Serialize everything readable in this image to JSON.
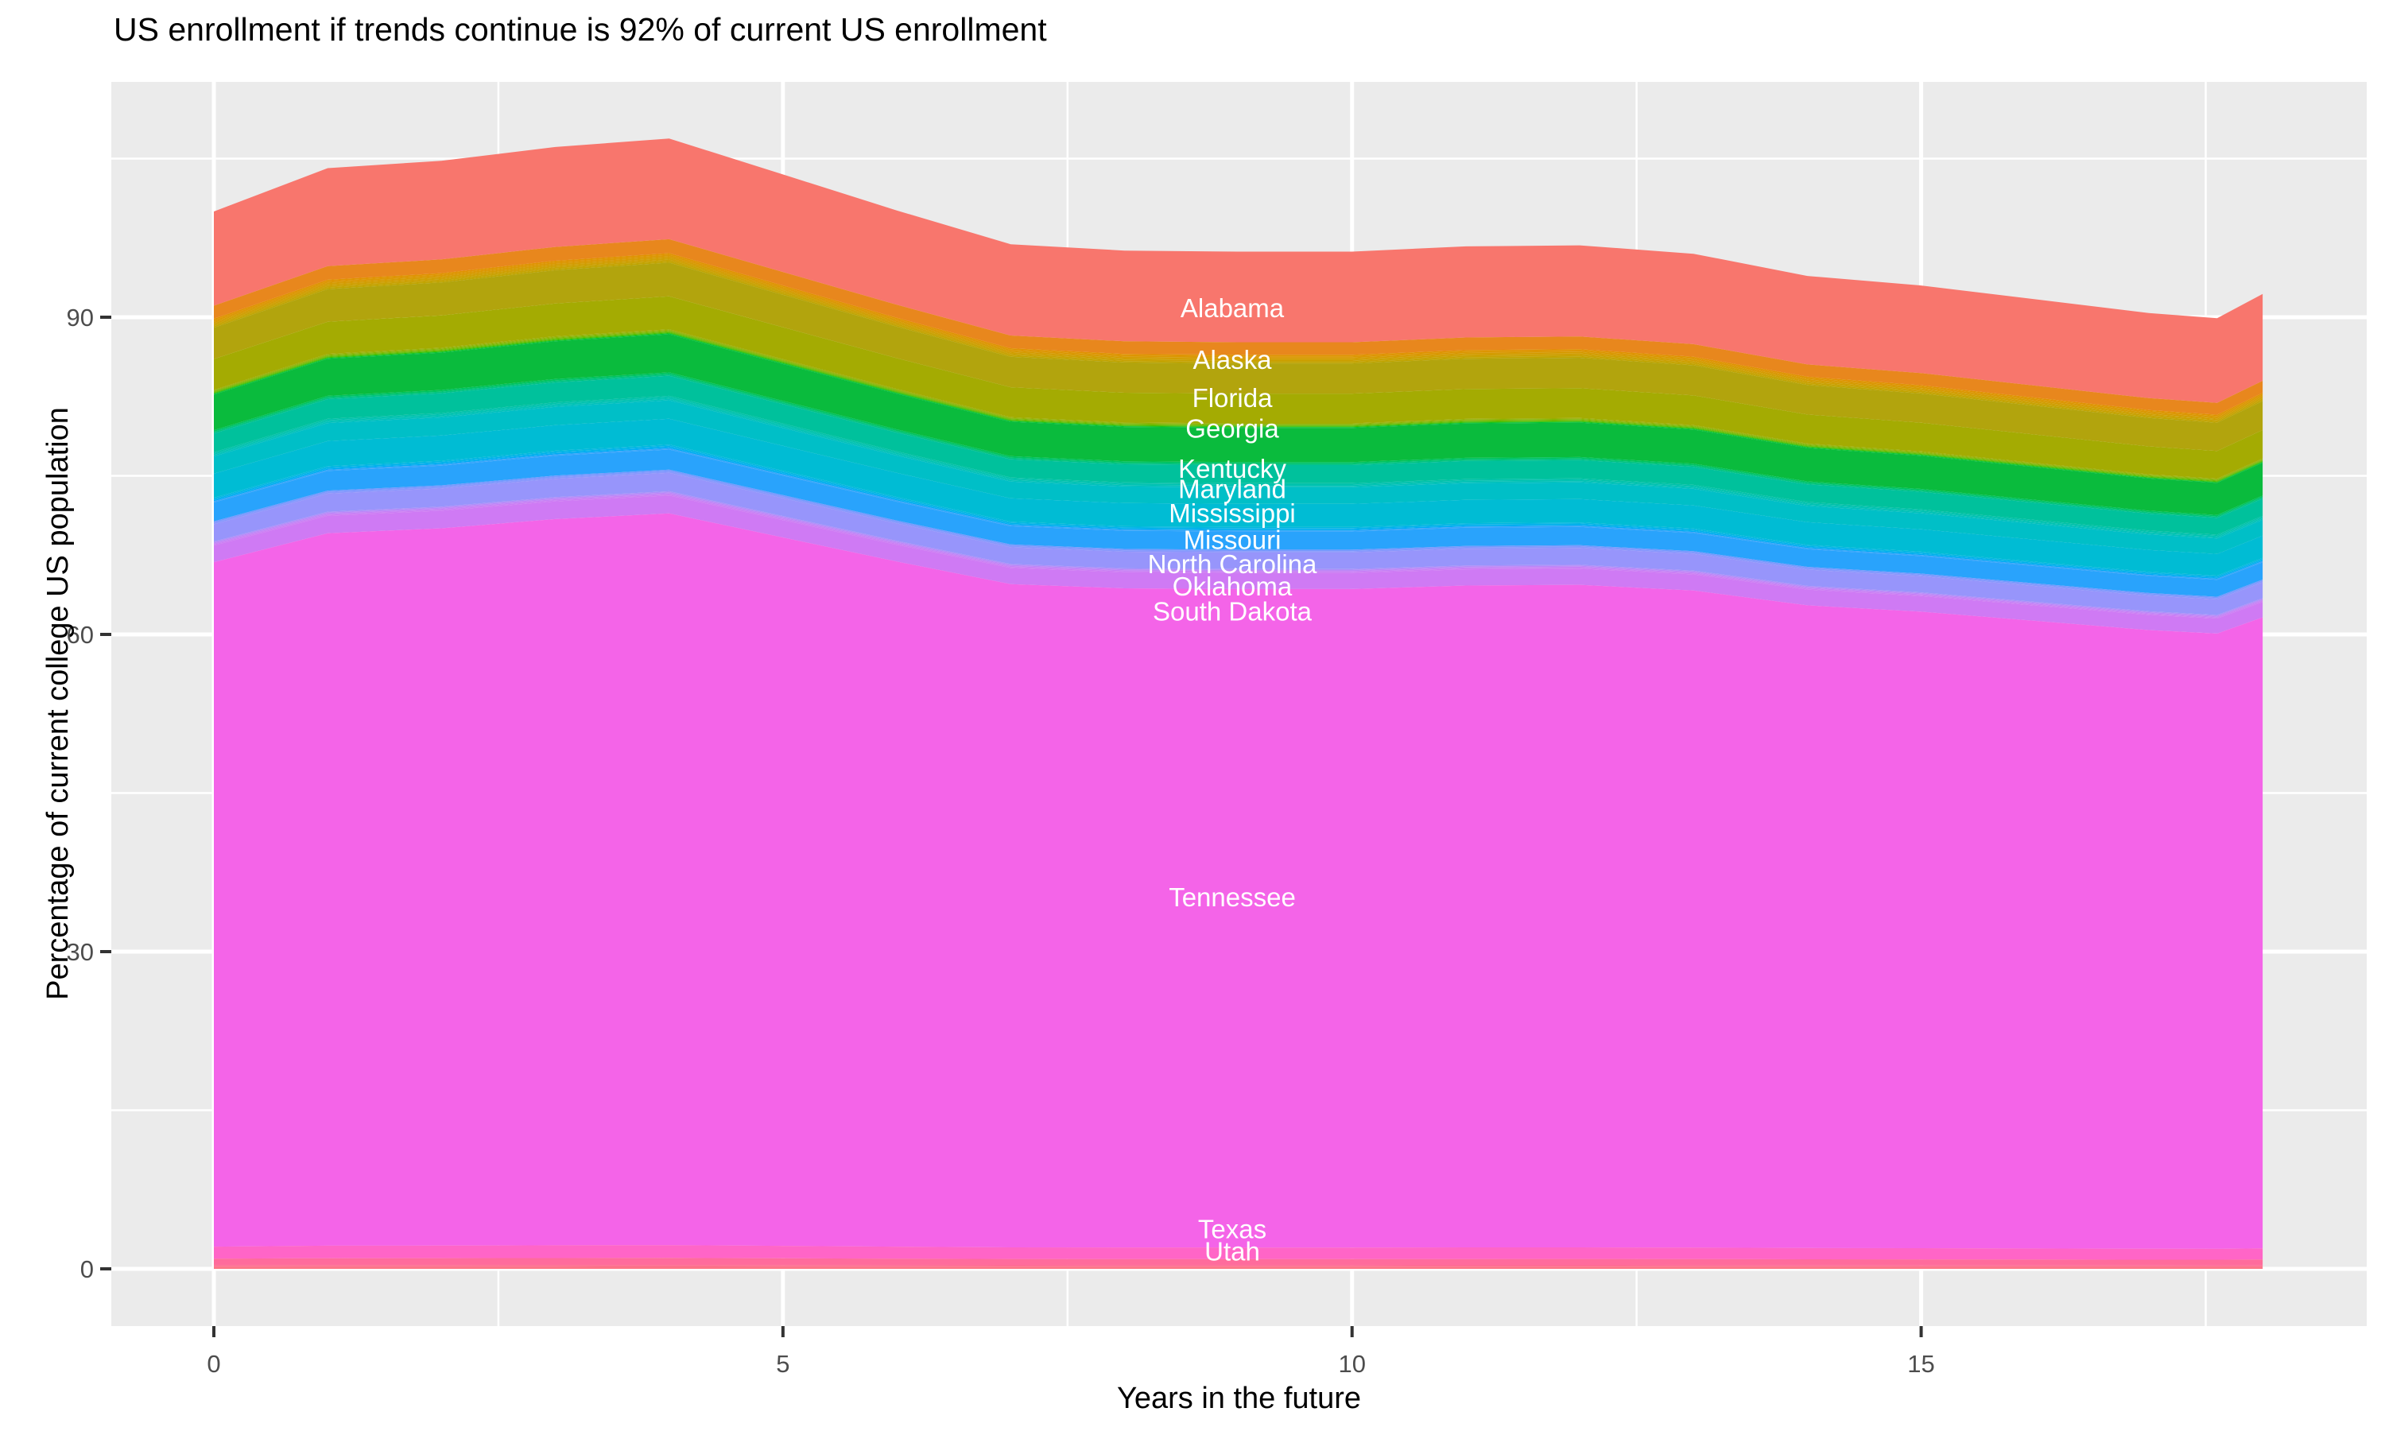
{
  "title": "US enrollment if trends continue is 92% of current US enrollment",
  "x_axis": {
    "title": "Years in the future",
    "tick_labels": [
      "0",
      "5",
      "10",
      "15"
    ],
    "tick_values": [
      0,
      5,
      10,
      15
    ],
    "minor_tick_values": [
      2.5,
      7.5,
      12.5,
      17.5
    ],
    "data_range": [
      0,
      18
    ]
  },
  "y_axis": {
    "title": "Percentage of current college US population",
    "tick_labels": [
      "0",
      "30",
      "60",
      "90"
    ],
    "tick_values": [
      0,
      30,
      60,
      90
    ],
    "minor_tick_values": [
      15,
      45,
      75,
      105
    ]
  },
  "style": {
    "panel_bg": "#EBEBEB",
    "grid_color": "#FFFFFF",
    "tick_mark_color": "#333333",
    "tick_text_color": "#4D4D4D",
    "state_label_color": "#FFFFFF"
  },
  "chart_data": {
    "type": "area",
    "stacked": true,
    "title": "US enrollment if trends continue is 92% of current US enrollment",
    "xlabel": "Years in the future",
    "ylabel": "Percentage of current college US population",
    "legend": "none (bands labeled in-plot with white text)",
    "grid": "ggplot2 style: white major+minor gridlines on grey panel",
    "x": [
      0,
      1,
      2,
      3,
      4,
      5,
      6,
      7,
      8,
      9,
      10,
      11,
      12,
      13,
      14,
      15,
      16,
      17,
      17.6,
      18
    ],
    "total_percent": [
      100.0,
      104.1,
      104.8,
      106.1,
      106.9,
      103.5,
      100.1,
      96.9,
      96.3,
      96.2,
      96.2,
      96.7,
      96.8,
      96.0,
      93.9,
      93.0,
      91.7,
      90.4,
      89.9,
      92.2
    ],
    "series_note": "Stacked top-to-bottom in this order; each series' value at x = share_of_total x total_percent[x]. Thin unlabeled stripe groups are the remaining alphabetical states squeezed between labeled ones.",
    "series": [
      {
        "name": "Alabama",
        "share": 0.09,
        "color": "#F8766D",
        "labeled": true,
        "label_at_percent": 90.9,
        "approx_percent_mid": 8.6
      },
      {
        "name": "Alaska",
        "share": 0.0125,
        "color": "#E8871D",
        "labeled": true,
        "label_at_percent": 86.0,
        "approx_percent_mid": 1.2
      },
      {
        "name": "unlabeled thin states (Arizona–Delaware)",
        "share": 0.0085,
        "colors": [
          "#E09200",
          "#DB9600",
          "#D59A00",
          "#CF9E00",
          "#C8A100",
          "#C0A400"
        ],
        "labeled": false
      },
      {
        "name": "Florida",
        "share": 0.03,
        "color": "#B2A40D",
        "labeled": true,
        "label_at_percent": 82.4,
        "approx_percent_mid": 2.9
      },
      {
        "name": "Georgia",
        "share": 0.0295,
        "color": "#A4AB02",
        "labeled": true,
        "label_at_percent": 79.5,
        "approx_percent_mid": 2.8
      },
      {
        "name": "unlabeled thin states (Hawaii–Kansas)",
        "share": 0.0045,
        "colors": [
          "#97AF00",
          "#88B400",
          "#74B900",
          "#5ABD00",
          "#36C100",
          "#00C433"
        ],
        "labeled": false
      },
      {
        "name": "Kentucky",
        "share": 0.034,
        "color": "#0ABB3D",
        "labeled": true,
        "label_at_percent": 75.7,
        "approx_percent_mid": 3.3
      },
      {
        "name": "unlabeled thin states (Louisiana–Maine)",
        "share": 0.003,
        "colors": [
          "#00C35E",
          "#00C380"
        ],
        "labeled": false
      },
      {
        "name": "Maryland",
        "share": 0.018,
        "color": "#00C19C",
        "labeled": true,
        "label_at_percent": 73.8,
        "approx_percent_mid": 1.7
      },
      {
        "name": "unlabeled thin states (Massachusetts–Minnesota)",
        "share": 0.004,
        "colors": [
          "#00C2A9",
          "#00C2B2",
          "#00C1BB"
        ],
        "labeled": false
      },
      {
        "name": "Mississippi",
        "share": 0.0165,
        "color": "#00BFC7",
        "labeled": true,
        "label_at_percent": 71.5,
        "approx_percent_mid": 1.6
      },
      {
        "name": "Missouri",
        "share": 0.023,
        "color": "#00BCD4",
        "labeled": true,
        "label_at_percent": 69.0,
        "approx_percent_mid": 2.2
      },
      {
        "name": "unlabeled thin states (Montana–New York)",
        "share": 0.0045,
        "colors": [
          "#00B8DF",
          "#00B2EA",
          "#00ABF4",
          "#3AA5FB"
        ],
        "labeled": false
      },
      {
        "name": "North Carolina",
        "share": 0.018,
        "color": "#29A3FC",
        "labeled": true,
        "label_at_percent": 66.7,
        "approx_percent_mid": 1.7
      },
      {
        "name": "unlabeled thin states (North Dakota–Ohio)",
        "share": 0.0028,
        "colors": [
          "#7599FE",
          "#8997FD"
        ],
        "labeled": false
      },
      {
        "name": "Oklahoma",
        "share": 0.0165,
        "color": "#9795FB",
        "labeled": true,
        "label_at_percent": 64.6,
        "approx_percent_mid": 1.6
      },
      {
        "name": "unlabeled thin states (Oregon–South Carolina)",
        "share": 0.0038,
        "colors": [
          "#AC8EFA",
          "#BC86F8",
          "#C680F6",
          "#CC7CF4"
        ],
        "labeled": false
      },
      {
        "name": "South Dakota",
        "share": 0.016,
        "color": "#CF7AF4",
        "labeled": true,
        "label_at_percent": 62.2,
        "approx_percent_mid": 1.5
      },
      {
        "name": "Tennessee",
        "share": 0.654,
        "color": "#F464E8",
        "labeled": true,
        "label_at_percent": 35.2,
        "approx_percent_mid": 62.4
      },
      {
        "name": "Texas",
        "share": 0.0115,
        "color": "#FF65C7",
        "labeled": true,
        "label_at_percent": 3.8,
        "approx_percent_mid": 1.1
      },
      {
        "name": "Utah",
        "share": 0.0062,
        "color": "#FF6B9C",
        "labeled": true,
        "label_at_percent": 1.7,
        "approx_percent_mid": 0.6
      },
      {
        "name": "unlabeled thin states (Vermont–Wyoming)",
        "share": 0.0035,
        "colors": [
          "#FE6F90",
          "#FB7484"
        ],
        "labeled": false
      }
    ]
  }
}
